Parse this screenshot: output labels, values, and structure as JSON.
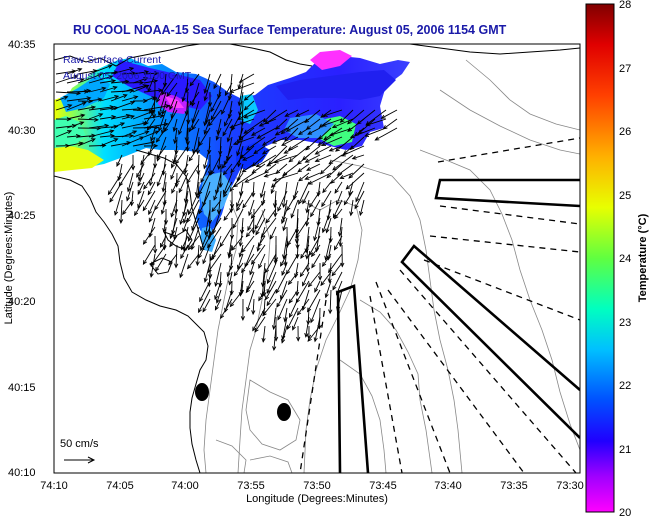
{
  "title": "RU COOL  NOAA-15  Sea Surface Temperature:  August 05, 2006 1154 GMT",
  "overlay": {
    "line1": "Raw Surface Current",
    "line2": "August 05, 2006 1100 GMT"
  },
  "scale": {
    "label": "50 cm/s"
  },
  "axes": {
    "xlabel": "Longitude (Degrees:Minutes)",
    "ylabel": "Latitude (Degrees:Minutes)",
    "xticks": [
      "74:10",
      "74:05",
      "74:00",
      "73:55",
      "73:50",
      "73:45",
      "73:40",
      "73:35",
      "73:30"
    ],
    "yticks": [
      "40:35",
      "40:30",
      "40:25",
      "40:20",
      "40:15",
      "40:10"
    ]
  },
  "colorbar": {
    "label": "Temperature (°C)",
    "ticks": [
      "28",
      "27",
      "26",
      "25",
      "24",
      "23",
      "22",
      "21",
      "20"
    ],
    "min": 20,
    "max": 28,
    "colors": [
      "#ff00ff",
      "#0000ff",
      "#00c8ff",
      "#00ff80",
      "#ffff00",
      "#ff8000",
      "#ff0000",
      "#800000"
    ]
  }
}
